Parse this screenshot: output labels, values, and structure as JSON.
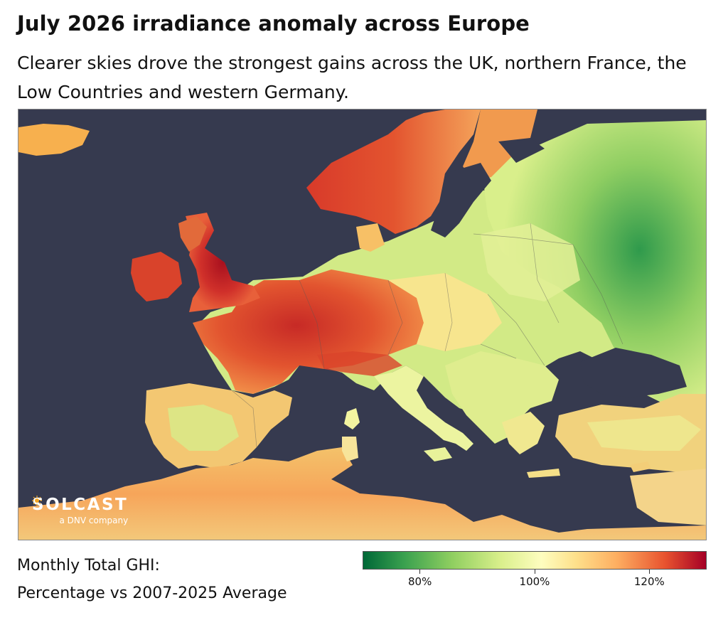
{
  "header": {
    "title": "July 2026 irradiance anomaly across Europe",
    "subtitle": "Clearer skies drove the strongest gains across the UK, northern France, the Low Countries and western Germany."
  },
  "map": {
    "region": "Europe",
    "water_color": "#363a4f",
    "border_color": "#555555"
  },
  "logo": {
    "name": "SOLCAST",
    "tagline": "a DNV company"
  },
  "legend": {
    "label_line1": "Monthly Total GHI:",
    "label_line2": "Percentage vs 2007-2025 Average",
    "colormap": [
      "#006837",
      "#3aa14f",
      "#90cf60",
      "#d9ef8b",
      "#fefdbf",
      "#fee08b",
      "#fdae61",
      "#e8532f",
      "#a50026"
    ],
    "range": [
      70,
      130
    ],
    "ticks": [
      {
        "value": 80,
        "label": "80%"
      },
      {
        "value": 100,
        "label": "100%"
      },
      {
        "value": 120,
        "label": "120%"
      }
    ]
  }
}
